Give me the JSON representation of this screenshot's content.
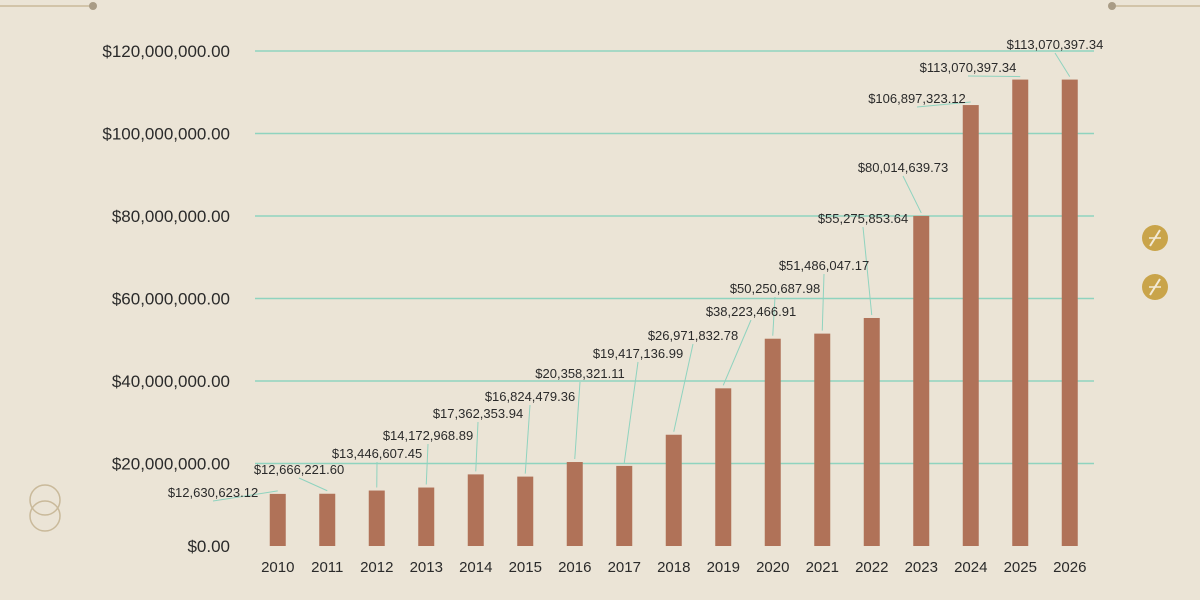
{
  "colors": {
    "background": "#ebe4d6",
    "bar": "#b07258",
    "gridline": "#8fd3bf",
    "axis_text": "#2a2a2a",
    "leader_line": "#8fd3bf",
    "ornament_line": "#c9b99a",
    "ornament_dot": "#a99c86",
    "badge_fill": "#c9a44a",
    "ring_stroke": "#c9b99a"
  },
  "icons": [
    "slash-circle-icon",
    "slash-circle-icon",
    "interlocking-rings-icon"
  ],
  "chart_data": {
    "type": "bar",
    "categories": [
      "2010",
      "2011",
      "2012",
      "2013",
      "2014",
      "2015",
      "2016",
      "2017",
      "2018",
      "2019",
      "2020",
      "2021",
      "2022",
      "2023",
      "2024",
      "2025",
      "2026"
    ],
    "values": [
      12630623.12,
      12666221.6,
      13446607.45,
      14172968.89,
      17362353.94,
      16824479.36,
      20358321.11,
      19417136.99,
      26971832.78,
      38223466.91,
      50250687.98,
      51486047.17,
      55275853.64,
      80014639.73,
      106897323.12,
      113070397.34,
      113070397.34
    ],
    "data_labels": [
      "$12,630,623.12",
      "$12,666,221.60",
      "$13,446,607.45",
      "$14,172,968.89",
      "$17,362,353.94",
      "$16,824,479.36",
      "$20,358,321.11",
      "$19,417,136.99",
      "$26,971,832.78",
      "$38,223,466.91",
      "$50,250,687.98",
      "$51,486,047.17",
      "$55,275,853.64",
      "$80,014,639.73",
      "$106,897,323.12",
      "$113,070,397.34",
      "$113,070,397.34"
    ],
    "yticks": [
      0,
      20000000,
      40000000,
      60000000,
      80000000,
      100000000,
      120000000
    ],
    "ytick_labels": [
      "$0.00",
      "$20,000,000.00",
      "$40,000,000.00",
      "$60,000,000.00",
      "$80,000,000.00",
      "$100,000,000.00",
      "$120,000,000.00"
    ],
    "ylim": [
      0,
      120000000
    ],
    "grid": true,
    "title": "",
    "xlabel": "",
    "ylabel": ""
  }
}
